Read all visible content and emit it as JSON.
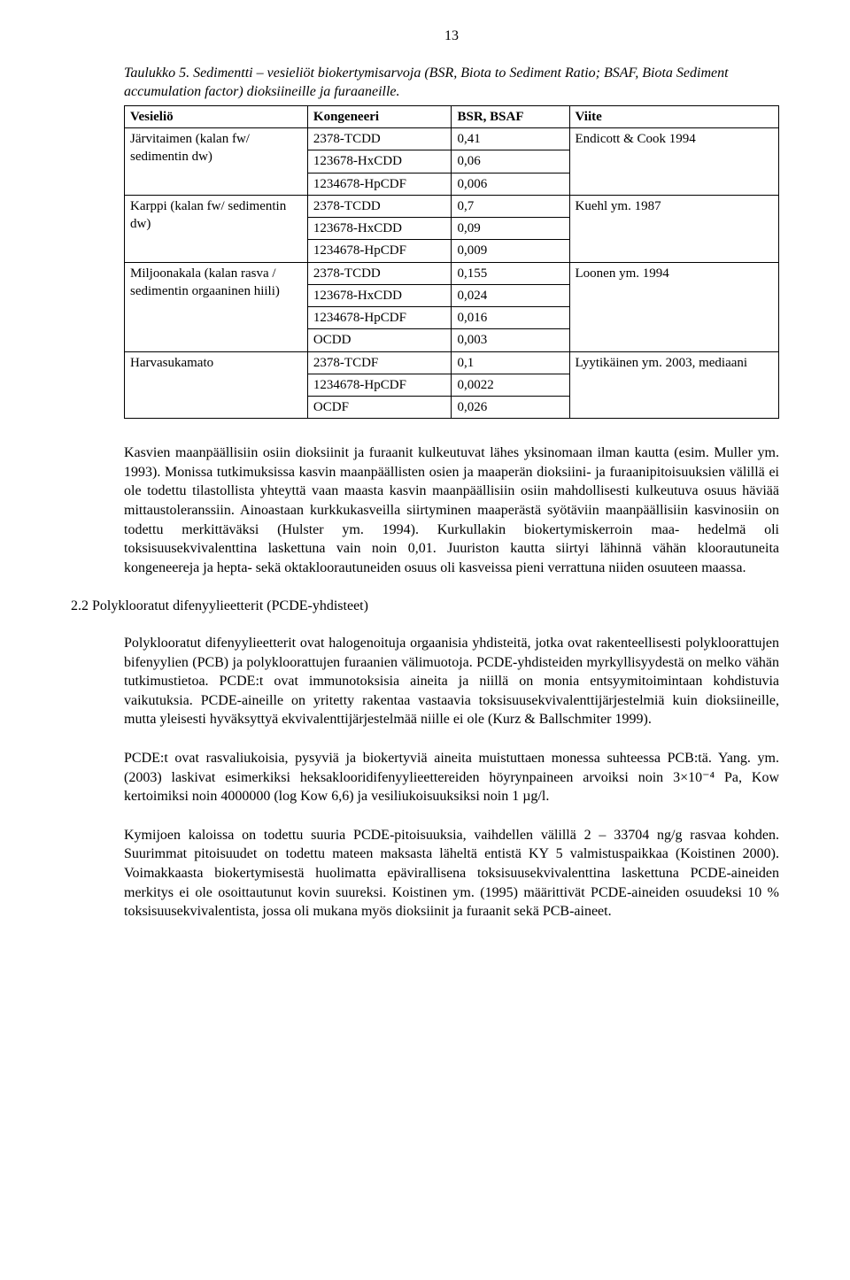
{
  "page_number": "13",
  "table": {
    "caption": "Taulukko 5. Sedimentti – vesieliöt biokertymisarvoja (BSR, Biota to Sediment Ratio; BSAF, Biota Sediment accumulation factor) dioksiineille ja furaaneille.",
    "headers": {
      "c1": "Vesieliö",
      "c2": "Kongeneeri",
      "c3": "BSR, BSAF",
      "c4": "Viite"
    },
    "rows": {
      "r1": {
        "org": "Järvitaimen (kalan fw/ sedimentin dw)",
        "k1": "2378-TCDD",
        "v1": "0,41",
        "k2": "123678-HxCDD",
        "v2": "0,06",
        "k3": "1234678-HpCDF",
        "v3": "0,006",
        "ref": "Endicott & Cook 1994"
      },
      "r2": {
        "org": "Karppi (kalan fw/ sedimentin dw)",
        "k1": "2378-TCDD",
        "v1": "0,7",
        "k2": "123678-HxCDD",
        "v2": "0,09",
        "k3": "1234678-HpCDF",
        "v3": "0,009",
        "ref": "Kuehl ym. 1987"
      },
      "r3": {
        "org": "Miljoonakala (kalan rasva / sedimentin orgaaninen hiili)",
        "k1": "2378-TCDD",
        "v1": "0,155",
        "k2": "123678-HxCDD",
        "v2": "0,024",
        "k3": "1234678-HpCDF",
        "v3": "0,016",
        "k4": "OCDD",
        "v4": "0,003",
        "ref": "Loonen ym. 1994"
      },
      "r4": {
        "org": "Harvasukamato",
        "k1": "2378-TCDF",
        "v1": "0,1",
        "k2": "1234678-HpCDF",
        "v2": "0,0022",
        "k3": "OCDF",
        "v3": "0,026",
        "ref": "Lyytikäinen ym. 2003, mediaani"
      }
    }
  },
  "para1": "Kasvien maanpäällisiin osiin dioksiinit ja furaanit kulkeutuvat lähes yksinomaan ilman kautta (esim. Muller ym. 1993). Monissa tutkimuksissa kasvin maanpäällisten osien ja maaperän dioksiini- ja furaanipitoisuuksien välillä ei ole todettu tilastollista yhteyttä vaan maasta kasvin maanpäällisiin osiin mahdollisesti kulkeutuva osuus häviää mittaustoleranssiin.   Ainoastaan kurkkukasveilla siirtyminen maaperästä syötäviin maanpäällisiin kasvinosiin on todettu merkittäväksi (Hulster ym. 1994).  Kurkullakin biokertymiskerroin maa- hedelmä oli toksisuusekvivalenttina laskettuna vain noin 0,01.  Juuriston kautta siirtyi lähinnä vähän kloorautuneita kongeneereja ja hepta- sekä oktakloorautuneiden osuus oli kasveissa pieni verrattuna niiden osuuteen maassa.",
  "section_heading": "2.2 Polyklooratut difenyylieetterit (PCDE-yhdisteet)",
  "para2": "Polyklooratut difenyylieetterit ovat halogenoituja orgaanisia yhdisteitä, jotka ovat rakenteellisesti polykloorattujen bifenyylien (PCB) ja polykloorattujen furaanien välimuotoja.  PCDE-yhdisteiden myrkyllisyydestä on melko vähän tutkimustietoa. PCDE:t ovat immunotoksisia aineita ja niillä on monia entsyymitoimintaan kohdistuvia vaikutuksia.  PCDE-aineille on yritetty rakentaa vastaavia toksisuusekvivalenttijärjestelmiä kuin dioksiineille, mutta yleisesti hyväksyttyä ekvivalenttijärjestelmää niille ei ole (Kurz & Ballschmiter 1999).",
  "para3": "PCDE:t ovat rasvaliukoisia, pysyviä ja biokertyviä aineita muistuttaen monessa suhteessa PCB:tä.  Yang. ym. (2003) laskivat esimerkiksi heksaklooridifenyylieettereiden höyrynpaineen arvoiksi noin 3×10⁻⁴ Pa, Kow kertoimiksi noin 4000000 (log Kow 6,6) ja vesiliukoisuuksiksi noin 1 µg/l.",
  "para4": "Kymijoen kaloissa on todettu suuria PCDE-pitoisuuksia, vaihdellen välillä 2 – 33704 ng/g rasvaa kohden.  Suurimmat pitoisuudet on todettu mateen maksasta läheltä entistä KY 5 valmistuspaikkaa (Koistinen 2000).  Voimakkaasta biokertymisestä huolimatta epävirallisena toksisuusekvivalenttina laskettuna PCDE-aineiden merkitys ei ole osoittautunut kovin suureksi.  Koistinen ym. (1995) määrittivät PCDE-aineiden osuudeksi 10 % toksisuusekvivalentista, jossa oli mukana myös dioksiinit ja furaanit sekä PCB-aineet."
}
